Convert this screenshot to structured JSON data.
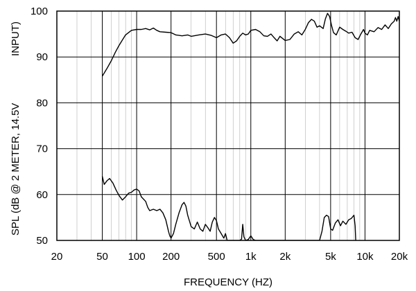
{
  "chart_data": {
    "type": "line",
    "title": "",
    "xlabel": "FREQUENCY  (HZ)",
    "ylabel_left": "SPL (dB @ 2 METER, 14.5V",
    "ylabel_right": "INPUT)",
    "x_scale": "log",
    "xlim": [
      20,
      20000
    ],
    "ylim": [
      50,
      100
    ],
    "grid": true,
    "x_ticks": [
      {
        "value": 20,
        "label": "20"
      },
      {
        "value": 50,
        "label": "50"
      },
      {
        "value": 100,
        "label": "100"
      },
      {
        "value": 200,
        "label": "200"
      },
      {
        "value": 500,
        "label": "500"
      },
      {
        "value": 1000,
        "label": "1k"
      },
      {
        "value": 2000,
        "label": "2k"
      },
      {
        "value": 5000,
        "label": "5k"
      },
      {
        "value": 10000,
        "label": "10k"
      },
      {
        "value": 20000,
        "label": "20k"
      }
    ],
    "y_ticks": [
      {
        "value": 50,
        "label": "50"
      },
      {
        "value": 60,
        "label": "60"
      },
      {
        "value": 70,
        "label": "70"
      },
      {
        "value": 80,
        "label": "80"
      },
      {
        "value": 90,
        "label": "90"
      },
      {
        "value": 100,
        "label": "100"
      }
    ],
    "series": [
      {
        "color": "#000000",
        "points": [
          [
            50,
            85.8
          ],
          [
            55,
            87.5
          ],
          [
            60,
            89.2
          ],
          [
            65,
            91
          ],
          [
            70,
            92.5
          ],
          [
            75,
            93.7
          ],
          [
            80,
            94.8
          ],
          [
            90,
            95.8
          ],
          [
            100,
            96
          ],
          [
            110,
            96
          ],
          [
            120,
            96.2
          ],
          [
            130,
            95.9
          ],
          [
            140,
            96.3
          ],
          [
            150,
            95.8
          ],
          [
            160,
            95.5
          ],
          [
            180,
            95.4
          ],
          [
            200,
            95.3
          ],
          [
            220,
            94.8
          ],
          [
            250,
            94.6
          ],
          [
            280,
            94.8
          ],
          [
            300,
            94.5
          ],
          [
            350,
            94.8
          ],
          [
            400,
            95
          ],
          [
            450,
            94.7
          ],
          [
            500,
            94.2
          ],
          [
            550,
            94.8
          ],
          [
            600,
            95
          ],
          [
            650,
            94.2
          ],
          [
            700,
            93
          ],
          [
            750,
            93.5
          ],
          [
            800,
            94.5
          ],
          [
            850,
            95.2
          ],
          [
            900,
            94.8
          ],
          [
            950,
            95
          ],
          [
            1000,
            95.8
          ],
          [
            1100,
            96
          ],
          [
            1200,
            95.5
          ],
          [
            1300,
            94.6
          ],
          [
            1400,
            94.5
          ],
          [
            1500,
            95
          ],
          [
            1600,
            94.2
          ],
          [
            1700,
            93.5
          ],
          [
            1800,
            94.5
          ],
          [
            2000,
            93.6
          ],
          [
            2200,
            93.8
          ],
          [
            2400,
            95
          ],
          [
            2600,
            95.5
          ],
          [
            2800,
            94.8
          ],
          [
            3000,
            96
          ],
          [
            3200,
            97.5
          ],
          [
            3400,
            98.2
          ],
          [
            3600,
            97.8
          ],
          [
            3800,
            96.5
          ],
          [
            4000,
            96.8
          ],
          [
            4300,
            96.2
          ],
          [
            4500,
            98.3
          ],
          [
            4700,
            99.5
          ],
          [
            4900,
            98.8
          ],
          [
            5100,
            96.8
          ],
          [
            5300,
            95.3
          ],
          [
            5600,
            94.8
          ],
          [
            6000,
            96.5
          ],
          [
            6400,
            96
          ],
          [
            6800,
            95.6
          ],
          [
            7200,
            95.2
          ],
          [
            7700,
            95.4
          ],
          [
            8200,
            94.2
          ],
          [
            8700,
            93.8
          ],
          [
            9200,
            95
          ],
          [
            9700,
            96
          ],
          [
            10000,
            95.2
          ],
          [
            10500,
            94.8
          ],
          [
            11000,
            95.8
          ],
          [
            12000,
            95.5
          ],
          [
            13000,
            96.4
          ],
          [
            14000,
            96
          ],
          [
            15000,
            97
          ],
          [
            16000,
            96.2
          ],
          [
            17000,
            97.2
          ],
          [
            18000,
            97.8
          ],
          [
            18500,
            98.6
          ],
          [
            19000,
            97.8
          ],
          [
            19500,
            98.8
          ],
          [
            20000,
            97.8
          ]
        ]
      },
      {
        "color": "#000000",
        "points": [
          [
            50,
            64
          ],
          [
            52,
            62.2
          ],
          [
            55,
            63
          ],
          [
            58,
            63.5
          ],
          [
            62,
            62.5
          ],
          [
            66,
            61
          ],
          [
            70,
            59.8
          ],
          [
            75,
            58.8
          ],
          [
            80,
            59.5
          ],
          [
            85,
            60.3
          ],
          [
            90,
            60.5
          ],
          [
            95,
            61
          ],
          [
            100,
            61.2
          ],
          [
            105,
            60.8
          ],
          [
            110,
            59.5
          ],
          [
            120,
            58.5
          ],
          [
            125,
            57.2
          ],
          [
            130,
            56.5
          ],
          [
            140,
            56.8
          ],
          [
            150,
            56.5
          ],
          [
            160,
            56.8
          ],
          [
            170,
            56
          ],
          [
            180,
            54.5
          ],
          [
            190,
            52
          ],
          [
            195,
            51
          ],
          [
            200,
            50.5
          ],
          [
            210,
            51.5
          ],
          [
            220,
            53.5
          ],
          [
            235,
            56
          ],
          [
            250,
            57.8
          ],
          [
            260,
            58.3
          ],
          [
            270,
            57.5
          ],
          [
            280,
            55.5
          ],
          [
            300,
            53
          ],
          [
            320,
            52.5
          ],
          [
            340,
            54
          ],
          [
            360,
            52.5
          ],
          [
            380,
            52
          ],
          [
            400,
            53.5
          ],
          [
            420,
            52.8
          ],
          [
            440,
            52
          ],
          [
            460,
            54
          ],
          [
            480,
            55
          ],
          [
            500,
            54.3
          ],
          [
            520,
            52.5
          ],
          [
            550,
            51.5
          ],
          [
            580,
            50.5
          ],
          [
            600,
            51.5
          ],
          [
            620,
            50
          ],
          [
            800,
            50
          ],
          [
            830,
            50.3
          ],
          [
            850,
            53.5
          ],
          [
            870,
            50.8
          ],
          [
            900,
            50
          ],
          [
            950,
            50.2
          ],
          [
            1000,
            51
          ],
          [
            1050,
            50.2
          ],
          [
            1100,
            50
          ],
          [
            4000,
            50
          ],
          [
            4200,
            52
          ],
          [
            4400,
            55
          ],
          [
            4600,
            55.5
          ],
          [
            4800,
            55.2
          ],
          [
            5000,
            52.5
          ],
          [
            5200,
            52.2
          ],
          [
            5500,
            53.8
          ],
          [
            5800,
            54.5
          ],
          [
            6100,
            53.2
          ],
          [
            6400,
            54.2
          ],
          [
            6800,
            53.5
          ],
          [
            7200,
            54.5
          ],
          [
            7600,
            54.8
          ],
          [
            8000,
            55.5
          ],
          [
            8200,
            53.2
          ],
          [
            8300,
            50
          ]
        ]
      }
    ]
  }
}
